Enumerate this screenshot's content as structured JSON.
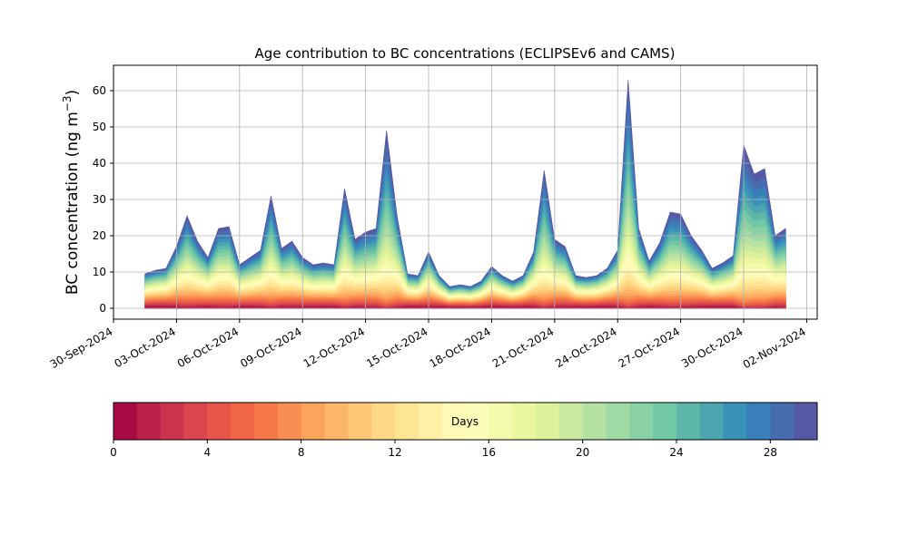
{
  "chart_data": {
    "type": "area",
    "stacked": true,
    "title": "Age contribution to BC concentrations (ECLIPSEv6 and CAMS)",
    "ylabel": "BC concentration (ng m",
    "ylabel_sup": "−3",
    "ylabel_close": ")",
    "ylim": [
      -3,
      67
    ],
    "yticks": [
      "0",
      "10",
      "20",
      "30",
      "40",
      "50",
      "60"
    ],
    "xlim": [
      "2024-09-30T00:00",
      "2024-11-02T12:00"
    ],
    "xticks": [
      "30-Sep-2024",
      "03-Oct-2024",
      "06-Oct-2024",
      "09-Oct-2024",
      "12-Oct-2024",
      "15-Oct-2024",
      "18-Oct-2024",
      "21-Oct-2024",
      "24-Oct-2024",
      "27-Oct-2024",
      "30-Oct-2024",
      "02-Nov-2024"
    ],
    "grid": true,
    "total_series": {
      "name": "total",
      "x": [
        "2024-10-01T12:00",
        "2024-10-02T00:00",
        "2024-10-02T12:00",
        "2024-10-03T00:00",
        "2024-10-03T12:00",
        "2024-10-04T00:00",
        "2024-10-04T12:00",
        "2024-10-05T00:00",
        "2024-10-05T12:00",
        "2024-10-06T00:00",
        "2024-10-06T12:00",
        "2024-10-07T00:00",
        "2024-10-07T12:00",
        "2024-10-08T00:00",
        "2024-10-08T12:00",
        "2024-10-09T00:00",
        "2024-10-09T12:00",
        "2024-10-10T00:00",
        "2024-10-10T12:00",
        "2024-10-11T00:00",
        "2024-10-11T12:00",
        "2024-10-12T00:00",
        "2024-10-12T12:00",
        "2024-10-13T00:00",
        "2024-10-13T12:00",
        "2024-10-14T00:00",
        "2024-10-14T12:00",
        "2024-10-15T00:00",
        "2024-10-15T12:00",
        "2024-10-16T00:00",
        "2024-10-16T12:00",
        "2024-10-17T00:00",
        "2024-10-17T12:00",
        "2024-10-18T00:00",
        "2024-10-18T12:00",
        "2024-10-19T00:00",
        "2024-10-19T12:00",
        "2024-10-20T00:00",
        "2024-10-20T12:00",
        "2024-10-21T00:00",
        "2024-10-21T12:00",
        "2024-10-22T00:00",
        "2024-10-22T12:00",
        "2024-10-23T00:00",
        "2024-10-23T12:00",
        "2024-10-24T00:00",
        "2024-10-24T12:00",
        "2024-10-25T00:00",
        "2024-10-25T12:00",
        "2024-10-26T00:00",
        "2024-10-26T12:00",
        "2024-10-27T00:00",
        "2024-10-27T12:00",
        "2024-10-28T00:00",
        "2024-10-28T12:00",
        "2024-10-29T00:00",
        "2024-10-29T12:00",
        "2024-10-30T00:00",
        "2024-10-30T12:00",
        "2024-10-31T00:00",
        "2024-10-31T12:00",
        "2024-11-01T00:00"
      ],
      "values": [
        9.5,
        10.5,
        11.0,
        17.0,
        25.5,
        18.5,
        14.0,
        22.0,
        22.5,
        12.0,
        14.0,
        16.0,
        31.0,
        16.5,
        18.5,
        14.0,
        12.0,
        12.5,
        12.0,
        33.0,
        19.0,
        21.0,
        22.0,
        49.0,
        25.5,
        9.5,
        9.0,
        15.5,
        9.0,
        6.0,
        6.5,
        6.0,
        7.5,
        11.5,
        9.0,
        7.5,
        9.0,
        15.5,
        38.0,
        19.0,
        17.0,
        9.0,
        8.5,
        9.0,
        11.0,
        16.0,
        63.0,
        22.0,
        13.0,
        18.0,
        26.5,
        26.0,
        20.0,
        16.0,
        11.0,
        12.5,
        14.5,
        45.0,
        37.0,
        38.5,
        20.0,
        22.0
      ]
    },
    "colorbar": {
      "label": "Days",
      "range": [
        0,
        30
      ],
      "bins": 30,
      "ticks": [
        "0",
        "4",
        "8",
        "12",
        "16",
        "20",
        "24",
        "28"
      ],
      "colormap": "Spectral"
    }
  }
}
